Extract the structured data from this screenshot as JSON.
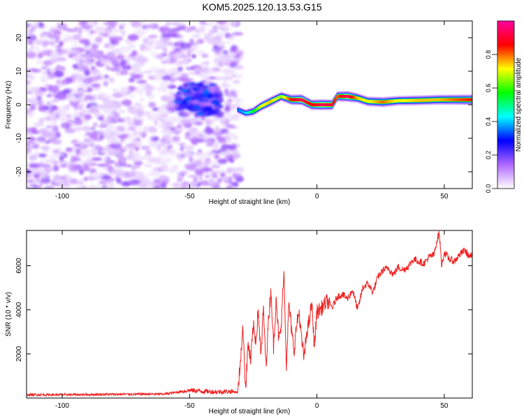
{
  "title": "KOM5.2025.120.13.53.G15",
  "chart_data": [
    {
      "type": "heatmap",
      "xlabel": "Height of straight line (km)",
      "ylabel": "Frequency (Hz)",
      "xlim": [
        -114,
        61
      ],
      "ylim": [
        -25,
        25
      ],
      "xticks": [
        -100,
        -50,
        0,
        50
      ],
      "yticks": [
        -20,
        -10,
        0,
        10,
        20
      ],
      "colorbar": {
        "label": "Normalized spectral amplitude",
        "range": [
          0,
          1
        ],
        "ticks": [
          0.0,
          0.2,
          0.4,
          0.6,
          0.8
        ],
        "tick_labels": [
          "0.0",
          "0.2",
          "0.4",
          "0.6",
          "0.8"
        ],
        "colors": [
          "#ffffff",
          "#b068ff",
          "#0000ff",
          "#00ffff",
          "#00ff00",
          "#ffff00",
          "#ff0000",
          "#ff00a0"
        ]
      },
      "noise_region": {
        "x_range": [
          -114,
          -30
        ],
        "amplitude_range": [
          0.0,
          0.15
        ]
      },
      "cluster": {
        "x_range": [
          -55,
          -38
        ],
        "y_range": [
          -3,
          6
        ],
        "peak_amplitude": 0.35
      },
      "ridge": {
        "x": [
          -31,
          -28,
          -25,
          -22,
          -18,
          -14,
          -10,
          -6,
          -2,
          2,
          6,
          8,
          12,
          16,
          20,
          26,
          32,
          40,
          48,
          54,
          61
        ],
        "y": [
          -1.5,
          -2.5,
          -2,
          -0.5,
          1,
          2.5,
          1.5,
          1.5,
          0,
          0,
          0,
          2.5,
          2.5,
          2,
          1,
          0.8,
          1.2,
          1.3,
          1.5,
          1.5,
          1.5
        ],
        "amplitude": [
          0.35,
          0.4,
          0.55,
          0.7,
          0.75,
          0.65,
          0.85,
          0.95,
          0.85,
          0.95,
          0.9,
          0.8,
          0.95,
          0.75,
          0.7,
          0.8,
          0.7,
          0.75,
          0.75,
          0.8,
          0.85
        ]
      }
    },
    {
      "type": "line",
      "xlabel": "Height of straight line (km)",
      "ylabel": "SNR (10 * v/v)",
      "xlim": [
        -114,
        61
      ],
      "ylim": [
        0,
        7600
      ],
      "xticks": [
        -100,
        -50,
        0,
        50
      ],
      "yticks": [
        2000,
        4000,
        6000
      ],
      "color": "#ee2222",
      "series": [
        {
          "x": [
            -114,
            -100,
            -80,
            -60,
            -50,
            -40,
            -33,
            -31,
            -30,
            -29,
            -28,
            -27,
            -26,
            -25,
            -24,
            -23,
            -22,
            -21,
            -20,
            -19,
            -18,
            -17,
            -16,
            -15,
            -14,
            -13,
            -12,
            -11,
            -10,
            -9,
            -8,
            -7,
            -6,
            -5,
            -4,
            -3,
            -2,
            -1,
            0,
            2,
            4,
            6,
            8,
            10,
            12,
            14,
            16,
            18,
            20,
            22,
            24,
            26,
            28,
            30,
            32,
            34,
            36,
            38,
            40,
            42,
            44,
            46,
            47,
            48,
            49,
            50,
            52,
            54,
            56,
            58,
            60,
            61
          ],
          "y": [
            150,
            150,
            170,
            180,
            350,
            280,
            300,
            250,
            1800,
            3200,
            400,
            2500,
            1600,
            3300,
            2600,
            4000,
            1800,
            4100,
            1400,
            3600,
            4900,
            2200,
            4700,
            2600,
            3200,
            5900,
            1500,
            4300,
            3100,
            2100,
            3300,
            3900,
            2600,
            1800,
            3000,
            3500,
            4300,
            2300,
            3900,
            4100,
            4400,
            4100,
            4600,
            4700,
            4500,
            4900,
            4000,
            5000,
            5200,
            4800,
            5500,
            5800,
            5900,
            5600,
            5950,
            5800,
            6000,
            6300,
            6200,
            6100,
            6400,
            6500,
            7100,
            7500,
            6000,
            6600,
            6300,
            6200,
            6500,
            6700,
            6400,
            6500
          ]
        }
      ]
    }
  ]
}
